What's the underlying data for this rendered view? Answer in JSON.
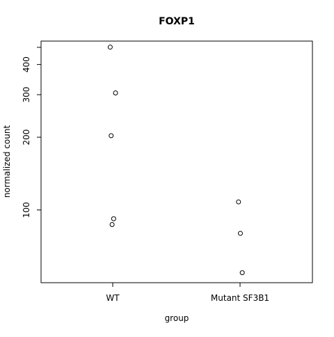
{
  "chart_data": {
    "type": "scatter",
    "title": "FOXP1",
    "xlabel": "group",
    "ylabel": "normalized count",
    "y_scale": "log",
    "ylim": [
      50,
      500
    ],
    "grid": false,
    "legend": "none",
    "categories": [
      "WT",
      "Mutant SF3B1"
    ],
    "y_ticks": [
      100,
      200,
      300,
      400
    ],
    "y_tick_labels": [
      "100",
      "200",
      "300",
      "400"
    ],
    "points": [
      {
        "group": "WT",
        "y": 472,
        "jitter": -0.08
      },
      {
        "group": "WT",
        "y": 305,
        "jitter": 0.09
      },
      {
        "group": "WT",
        "y": 203,
        "jitter": -0.05
      },
      {
        "group": "WT",
        "y": 92,
        "jitter": 0.03
      },
      {
        "group": "WT",
        "y": 87,
        "jitter": -0.02
      },
      {
        "group": "Mutant SF3B1",
        "y": 108,
        "jitter": -0.05
      },
      {
        "group": "Mutant SF3B1",
        "y": 80,
        "jitter": 0.01
      },
      {
        "group": "Mutant SF3B1",
        "y": 55,
        "jitter": 0.07
      }
    ],
    "marker": {
      "shape": "open-circle",
      "stroke": "#000000"
    }
  }
}
